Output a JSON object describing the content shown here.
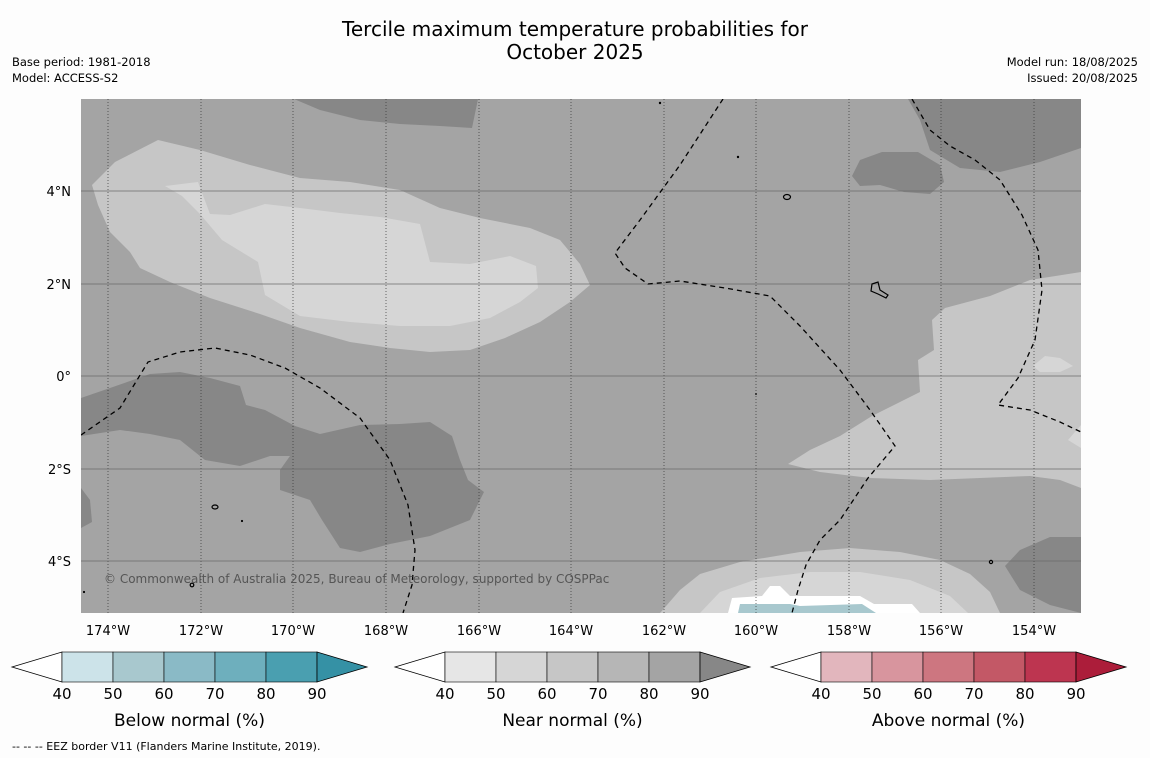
{
  "title_line1": "Tercile maximum temperature probabilities for",
  "title_line2": "October 2025",
  "base_period": "Base period: 1981-2018",
  "model": "Model: ACCESS-S2",
  "model_run": "Model run: 18/08/2025",
  "issued": "Issued: 20/08/2025",
  "copyright": "© Commonwealth of Australia 2025, Bureau of Meteorology, supported by COSPPac",
  "footnote": "--  --  -- EEZ border V11 (Flanders Marine Institute, 2019).",
  "map": {
    "lon_labels": [
      "174°W",
      "172°W",
      "170°W",
      "168°W",
      "166°W",
      "164°W",
      "162°W",
      "160°W",
      "158°W",
      "156°W",
      "154°W"
    ],
    "lat_labels": [
      "4°N",
      "2°N",
      "0°",
      "2°S",
      "4°S"
    ]
  },
  "colorbars": [
    {
      "label": "Below normal (%)",
      "ticks": [
        "40",
        "50",
        "60",
        "70",
        "80",
        "90"
      ],
      "colors": [
        "#ffffff",
        "#cce3e9",
        "#a8c8ce",
        "#8abac6",
        "#6eafbd",
        "#4a9fb0",
        "#3591a5"
      ]
    },
    {
      "label": "Near normal (%)",
      "ticks": [
        "40",
        "50",
        "60",
        "70",
        "80",
        "90"
      ],
      "colors": [
        "#ffffff",
        "#e6e6e6",
        "#d6d6d6",
        "#c6c6c6",
        "#b6b6b6",
        "#a4a4a4",
        "#878787"
      ]
    },
    {
      "label": "Above normal (%)",
      "ticks": [
        "40",
        "50",
        "60",
        "70",
        "80",
        "90"
      ],
      "colors": [
        "#ffffff",
        "#e2b6bd",
        "#d8959e",
        "#cd7680",
        "#c35866",
        "#bd3550",
        "#ac1d3a"
      ]
    }
  ]
}
